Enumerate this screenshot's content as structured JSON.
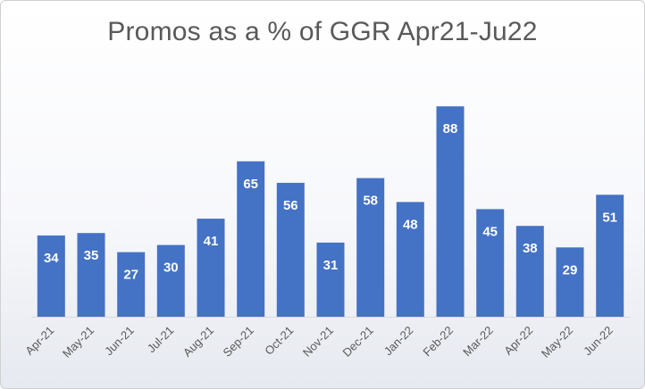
{
  "chart_data": {
    "type": "bar",
    "title": "Promos as a % of GGR Apr21-Ju22",
    "xlabel": "",
    "ylabel": "",
    "ylim": [
      0,
      100
    ],
    "grid": false,
    "legend": "none",
    "categories": [
      "Apr-21",
      "May-21",
      "Jun-21",
      "Jul-21",
      "Aug-21",
      "Sep-21",
      "Oct-21",
      "Nov-21",
      "Dec-21",
      "Jan-22",
      "Feb-22",
      "Mar-22",
      "Apr-22",
      "May-22",
      "Jun-22"
    ],
    "values": [
      34,
      35,
      27,
      30,
      41,
      65,
      56,
      31,
      58,
      48,
      88,
      45,
      38,
      29,
      51
    ],
    "data_labels": [
      "34",
      "35",
      "27",
      "30",
      "41",
      "65",
      "56",
      "31",
      "58",
      "48",
      "88",
      "45",
      "38",
      "29",
      "51"
    ],
    "bar_color": "#4472c4",
    "label_color": "#ffffff"
  }
}
